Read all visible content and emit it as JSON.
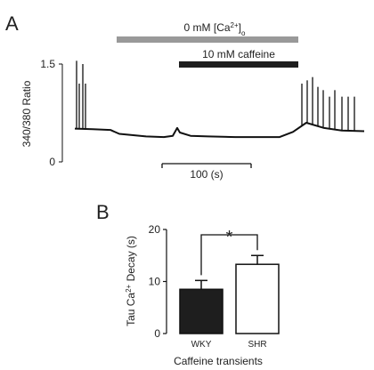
{
  "colors": {
    "ink": "#111111",
    "gray_bar": "#999999",
    "bar_wky": "#1e1e1e",
    "bar_shr": "#ffffff"
  },
  "chart_data": [
    {
      "panel": "A",
      "type": "line",
      "ylabel": "340/380 Ratio",
      "ylim": [
        0,
        1.5
      ],
      "yticks": [
        "0",
        "1.5"
      ],
      "scalebar": {
        "label": "100 (s)",
        "seconds": 100
      },
      "bars": [
        {
          "label_prefix": "0 mM [Ca",
          "sup": "2+",
          "close": "]",
          "sub": "o",
          "t_start": 47,
          "t_end": 251,
          "color": "#999999"
        },
        {
          "label": "10 mM caffeine",
          "t_start": 117,
          "t_end": 251,
          "color": "#1e1e1e"
        }
      ],
      "series": [
        {
          "x": [
            0,
            20,
            40,
            50,
            80,
            100,
            110,
            115,
            118,
            130,
            150,
            180,
            210,
            230,
            245,
            260,
            280,
            300,
            325
          ],
          "y": [
            0.51,
            0.5,
            0.49,
            0.43,
            0.39,
            0.38,
            0.4,
            0.52,
            0.45,
            0.4,
            0.39,
            0.38,
            0.38,
            0.38,
            0.46,
            0.6,
            0.52,
            0.48,
            0.47
          ]
        }
      ],
      "spikes": [
        {
          "x": 2,
          "y": 1.55
        },
        {
          "x": 5,
          "y": 1.2
        },
        {
          "x": 9,
          "y": 1.5
        },
        {
          "x": 12,
          "y": 1.2
        },
        {
          "x": 255,
          "y": 1.2
        },
        {
          "x": 261,
          "y": 1.25
        },
        {
          "x": 267,
          "y": 1.3
        },
        {
          "x": 273,
          "y": 1.15
        },
        {
          "x": 279,
          "y": 1.1
        },
        {
          "x": 286,
          "y": 1.0
        },
        {
          "x": 292,
          "y": 1.1
        },
        {
          "x": 300,
          "y": 1.0
        },
        {
          "x": 307,
          "y": 1.0
        },
        {
          "x": 314,
          "y": 1.0
        }
      ]
    },
    {
      "panel": "B",
      "type": "bar",
      "categories": [
        "WKY",
        "SHR"
      ],
      "values": [
        8.5,
        13.3
      ],
      "errors": [
        1.7,
        1.7
      ],
      "colors": [
        "#1e1e1e",
        "#ffffff"
      ],
      "ylabel_prefix": "Tau Ca",
      "ylabel_sup": "2+",
      "ylabel_suffix": " Decay (s)",
      "xlabel": "Caffeine transients",
      "ylim": [
        0,
        20
      ],
      "yticks": [
        0,
        10,
        20
      ],
      "significance": "*"
    }
  ]
}
